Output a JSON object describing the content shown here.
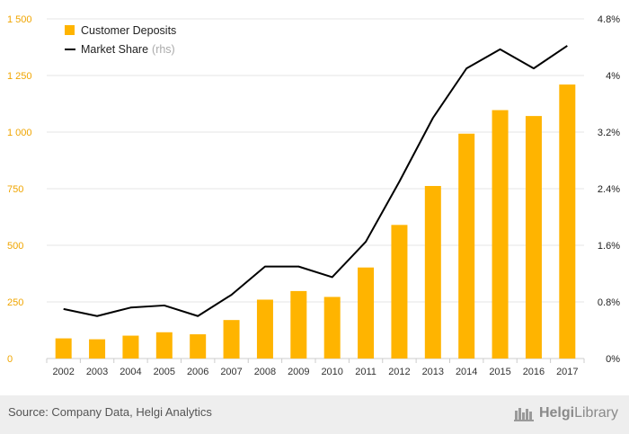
{
  "chart_data": {
    "type": "bar",
    "categories": [
      "2002",
      "2003",
      "2004",
      "2005",
      "2006",
      "2007",
      "2008",
      "2009",
      "2010",
      "2011",
      "2012",
      "2013",
      "2014",
      "2015",
      "2016",
      "2017"
    ],
    "series": [
      {
        "name": "Customer Deposits",
        "type": "bar",
        "axis": "left",
        "values": [
          89,
          85,
          101,
          116,
          107,
          170,
          260,
          298,
          272,
          402,
          590,
          762,
          993,
          1097,
          1071,
          1210
        ]
      },
      {
        "name": "Market Share",
        "suffix": "(rhs)",
        "type": "line",
        "axis": "right",
        "values": [
          0.7,
          0.6,
          0.72,
          0.75,
          0.6,
          0.9,
          1.3,
          1.3,
          1.15,
          1.65,
          2.5,
          3.4,
          4.1,
          4.37,
          4.1,
          4.42
        ]
      }
    ],
    "yleft": {
      "ticks": [
        "0",
        "250",
        "500",
        "750",
        "1 000",
        "1 250",
        "1 500"
      ],
      "tick_values": [
        0,
        250,
        500,
        750,
        1000,
        1250,
        1500
      ],
      "ylim": [
        0,
        1500
      ]
    },
    "yright": {
      "ticks": [
        "0%",
        "0.8%",
        "1.6%",
        "2.4%",
        "3.2%",
        "4%",
        "4.8%"
      ],
      "tick_values": [
        0,
        0.8,
        1.6,
        2.4,
        3.2,
        4.0,
        4.8
      ],
      "ylim": [
        0,
        4.8
      ]
    },
    "grid": true,
    "legend_position": "top-left",
    "colors": {
      "bar": "#ffb400",
      "line": "#000000",
      "left_tick": "#f0a500",
      "grid": "#e6e6e6"
    }
  },
  "footer": {
    "source": "Source: Company Data, Helgi Analytics",
    "logo_bold": "Helgi",
    "logo_light": "Library"
  }
}
